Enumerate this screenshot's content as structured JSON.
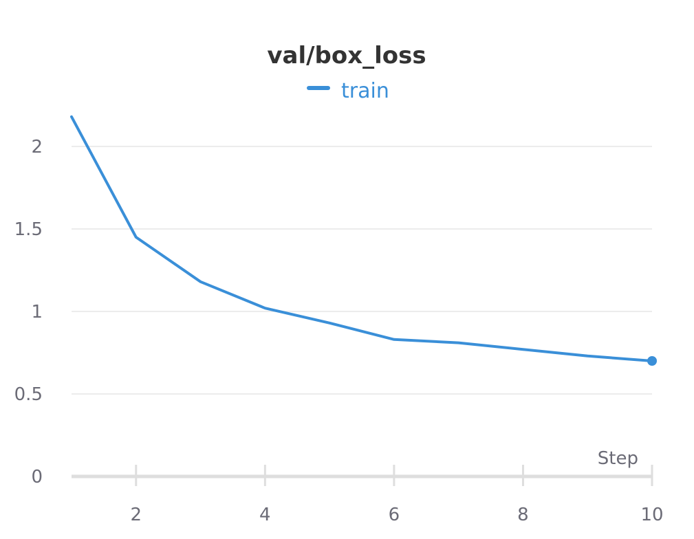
{
  "chart_data": {
    "type": "line",
    "title": "val/box_loss",
    "xlabel": "Step",
    "ylabel": "",
    "xlim": [
      1,
      10
    ],
    "ylim": [
      0,
      2.2
    ],
    "x_ticks": [
      2,
      4,
      6,
      8,
      10
    ],
    "y_ticks": [
      0,
      0.5,
      1,
      1.5,
      2
    ],
    "y_tick_labels": [
      "0",
      "0.5",
      "1",
      "1.5",
      "2"
    ],
    "x_tick_labels": [
      "2",
      "4",
      "6",
      "8",
      "10"
    ],
    "grid": true,
    "legend_position": "top-center",
    "series": [
      {
        "name": "train",
        "color": "#3a8fd8",
        "x": [
          1,
          2,
          3,
          4,
          5,
          6,
          7,
          8,
          9,
          10
        ],
        "values": [
          2.18,
          1.45,
          1.18,
          1.02,
          0.93,
          0.83,
          0.81,
          0.77,
          0.73,
          0.7
        ]
      }
    ]
  },
  "colors": {
    "grid": "#e6e6e6",
    "axis": "#dedede",
    "text": "#6b6b76",
    "title": "#333333"
  }
}
